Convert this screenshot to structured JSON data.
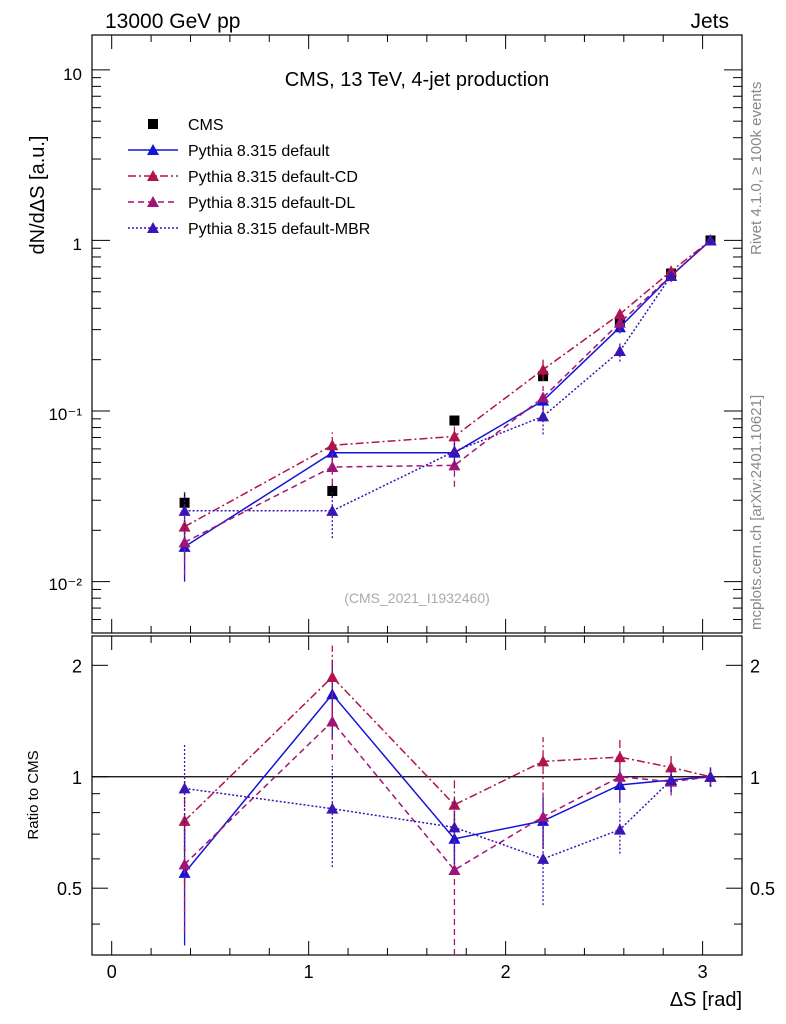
{
  "header": {
    "left": "13000 GeV pp",
    "right": "Jets"
  },
  "side": {
    "rivet": "Rivet 4.1.0, ≥ 100k events",
    "mcplots": "mcplots.cern.ch [arXiv:2401.10621]"
  },
  "chart_data": [
    {
      "type": "line",
      "title": "CMS, 13 TeV, 4-jet production",
      "ylabel": "dN/dΔS [a.u.]",
      "yscale": "log",
      "ylim": [
        0.005,
        16
      ],
      "xlim": [
        -0.1,
        3.2
      ],
      "watermark": "(CMS_2021_I1932460)",
      "ytick_labels": [
        "10⁻²",
        "10⁻¹",
        "1",
        "10"
      ],
      "x": [
        0.37,
        1.12,
        1.74,
        2.19,
        2.58,
        2.84,
        3.04
      ],
      "series": [
        {
          "name": "CMS",
          "style": "data",
          "color": "#000000",
          "values": [
            0.029,
            0.034,
            0.088,
            0.16,
            0.33,
            0.64,
            1.0
          ],
          "err": [
            0.004,
            0.003,
            0.006,
            0.01,
            0.02,
            0.03,
            0.04
          ]
        },
        {
          "name": "Pythia 8.315 default",
          "style": "solid",
          "color": "#1414d6",
          "values": [
            0.016,
            0.057,
            0.057,
            0.115,
            0.31,
            0.62,
            1.0
          ],
          "err": [
            0.006,
            0.01,
            0.008,
            0.012,
            0.025,
            0.04,
            0.05
          ]
        },
        {
          "name": "Pythia 8.315 default-CD",
          "style": "dashdot",
          "color": "#b0144a",
          "values": [
            0.021,
            0.063,
            0.071,
            0.175,
            0.37,
            0.66,
            1.0
          ],
          "err": [
            0.007,
            0.012,
            0.01,
            0.025,
            0.04,
            0.05,
            0.05
          ]
        },
        {
          "name": "Pythia 8.315 default-DL",
          "style": "dashed",
          "color": "#a01478",
          "values": [
            0.017,
            0.047,
            0.048,
            0.12,
            0.33,
            0.62,
            1.0
          ],
          "err": [
            0.006,
            0.01,
            0.012,
            0.02,
            0.04,
            0.05,
            0.05
          ]
        },
        {
          "name": "Pythia 8.315 default-MBR",
          "style": "dotted",
          "color": "#3b14b4",
          "values": [
            0.026,
            0.026,
            0.058,
            0.093,
            0.225,
            0.62,
            1.0
          ],
          "err": [
            0.008,
            0.008,
            0.01,
            0.02,
            0.03,
            0.04,
            0.05
          ]
        }
      ]
    },
    {
      "type": "line",
      "ylabel": "Ratio to CMS",
      "xlabel": "ΔS [rad]",
      "ylim": [
        0.33,
        2.4
      ],
      "xlim": [
        -0.1,
        3.2
      ],
      "xticks": [
        0,
        1,
        2,
        3
      ],
      "yticks": [
        0.5,
        1,
        2
      ],
      "reference": 1,
      "x": [
        0.37,
        1.12,
        1.74,
        2.19,
        2.58,
        2.84,
        3.04
      ],
      "series": [
        {
          "name": "Pythia 8.315 default",
          "style": "solid",
          "color": "#1414d6",
          "values": [
            0.55,
            1.67,
            0.68,
            0.76,
            0.95,
            0.98,
            1.0
          ],
          "err": [
            0.2,
            0.4,
            0.1,
            0.12,
            0.1,
            0.07,
            0.06
          ]
        },
        {
          "name": "Pythia 8.315 default-CD",
          "style": "dashdot",
          "color": "#b0144a",
          "values": [
            0.76,
            1.86,
            0.84,
            1.1,
            1.13,
            1.06,
            1.0
          ],
          "err": [
            0.25,
            0.4,
            0.15,
            0.18,
            0.15,
            0.08,
            0.06
          ]
        },
        {
          "name": "Pythia 8.315 default-DL",
          "style": "dashed",
          "color": "#a01478",
          "values": [
            0.58,
            1.41,
            0.56,
            0.78,
            1.0,
            0.97,
            1.0
          ],
          "err": [
            0.2,
            0.3,
            0.25,
            0.14,
            0.12,
            0.08,
            0.06
          ]
        },
        {
          "name": "Pythia 8.315 default-MBR",
          "style": "dotted",
          "color": "#3b14b4",
          "values": [
            0.93,
            0.82,
            0.73,
            0.6,
            0.72,
            0.98,
            1.0
          ],
          "err": [
            0.3,
            0.25,
            0.15,
            0.15,
            0.1,
            0.07,
            0.06
          ]
        }
      ]
    }
  ]
}
